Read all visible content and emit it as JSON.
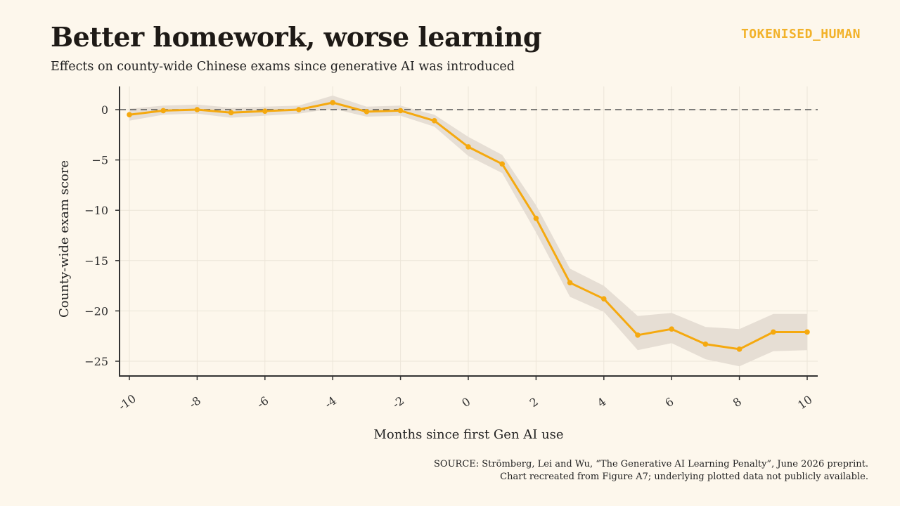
{
  "header": {
    "title": "Better homework, worse learning",
    "subtitle": "Effects on county-wide Chinese exams since generative AI was introduced",
    "brand": "TOKENISED_HUMAN"
  },
  "footer": {
    "source_line1": "SOURCE: Strömberg, Lei and Wu, “The Generative AI Learning Penalty”, June 2026 preprint.",
    "source_line2": "Chart recreated from Figure A7; underlying plotted data not publicly available."
  },
  "colors": {
    "line": "#f5a90f",
    "band": "#e6ded4",
    "background": "#fdf7ec",
    "grid": "#ece5d8",
    "zero_line": "#555555"
  },
  "chart_data": {
    "type": "line",
    "title": "",
    "xlabel": "Months since first Gen AI use",
    "ylabel": "County-wide exam score",
    "xlim": [
      -10,
      10
    ],
    "ylim": [
      -25,
      0
    ],
    "x_ticks": [
      -10,
      -8,
      -6,
      -4,
      -2,
      0,
      2,
      4,
      6,
      8,
      10
    ],
    "y_ticks": [
      0,
      -5,
      -10,
      -15,
      -20,
      -25
    ],
    "grid": true,
    "reference_line": 0,
    "series": [
      {
        "x": [
          -10,
          -9,
          -8,
          -7,
          -6,
          -5,
          -4,
          -3,
          -2,
          -1,
          0,
          1,
          2,
          3,
          4,
          5,
          6,
          7,
          8,
          9,
          10
        ],
        "values": [
          -0.5,
          -0.1,
          0.0,
          -0.3,
          -0.15,
          0.0,
          0.7,
          -0.2,
          -0.1,
          -1.1,
          -3.7,
          -5.4,
          -10.8,
          -17.2,
          -18.8,
          -22.4,
          -21.8,
          -23.3,
          -23.8,
          -22.1,
          -22.1
        ],
        "lower": [
          -1.1,
          -0.5,
          -0.4,
          -0.8,
          -0.6,
          -0.4,
          0.1,
          -0.7,
          -0.6,
          -1.7,
          -4.6,
          -6.3,
          -12.2,
          -18.6,
          -20.1,
          -23.9,
          -23.2,
          -24.8,
          -25.5,
          -24.0,
          -23.9
        ],
        "upper": [
          0.1,
          0.4,
          0.5,
          0.2,
          0.3,
          0.4,
          1.4,
          0.3,
          0.4,
          -0.5,
          -2.7,
          -4.5,
          -9.5,
          -15.8,
          -17.5,
          -20.5,
          -20.2,
          -21.6,
          -21.8,
          -20.3,
          -20.3
        ]
      }
    ]
  }
}
